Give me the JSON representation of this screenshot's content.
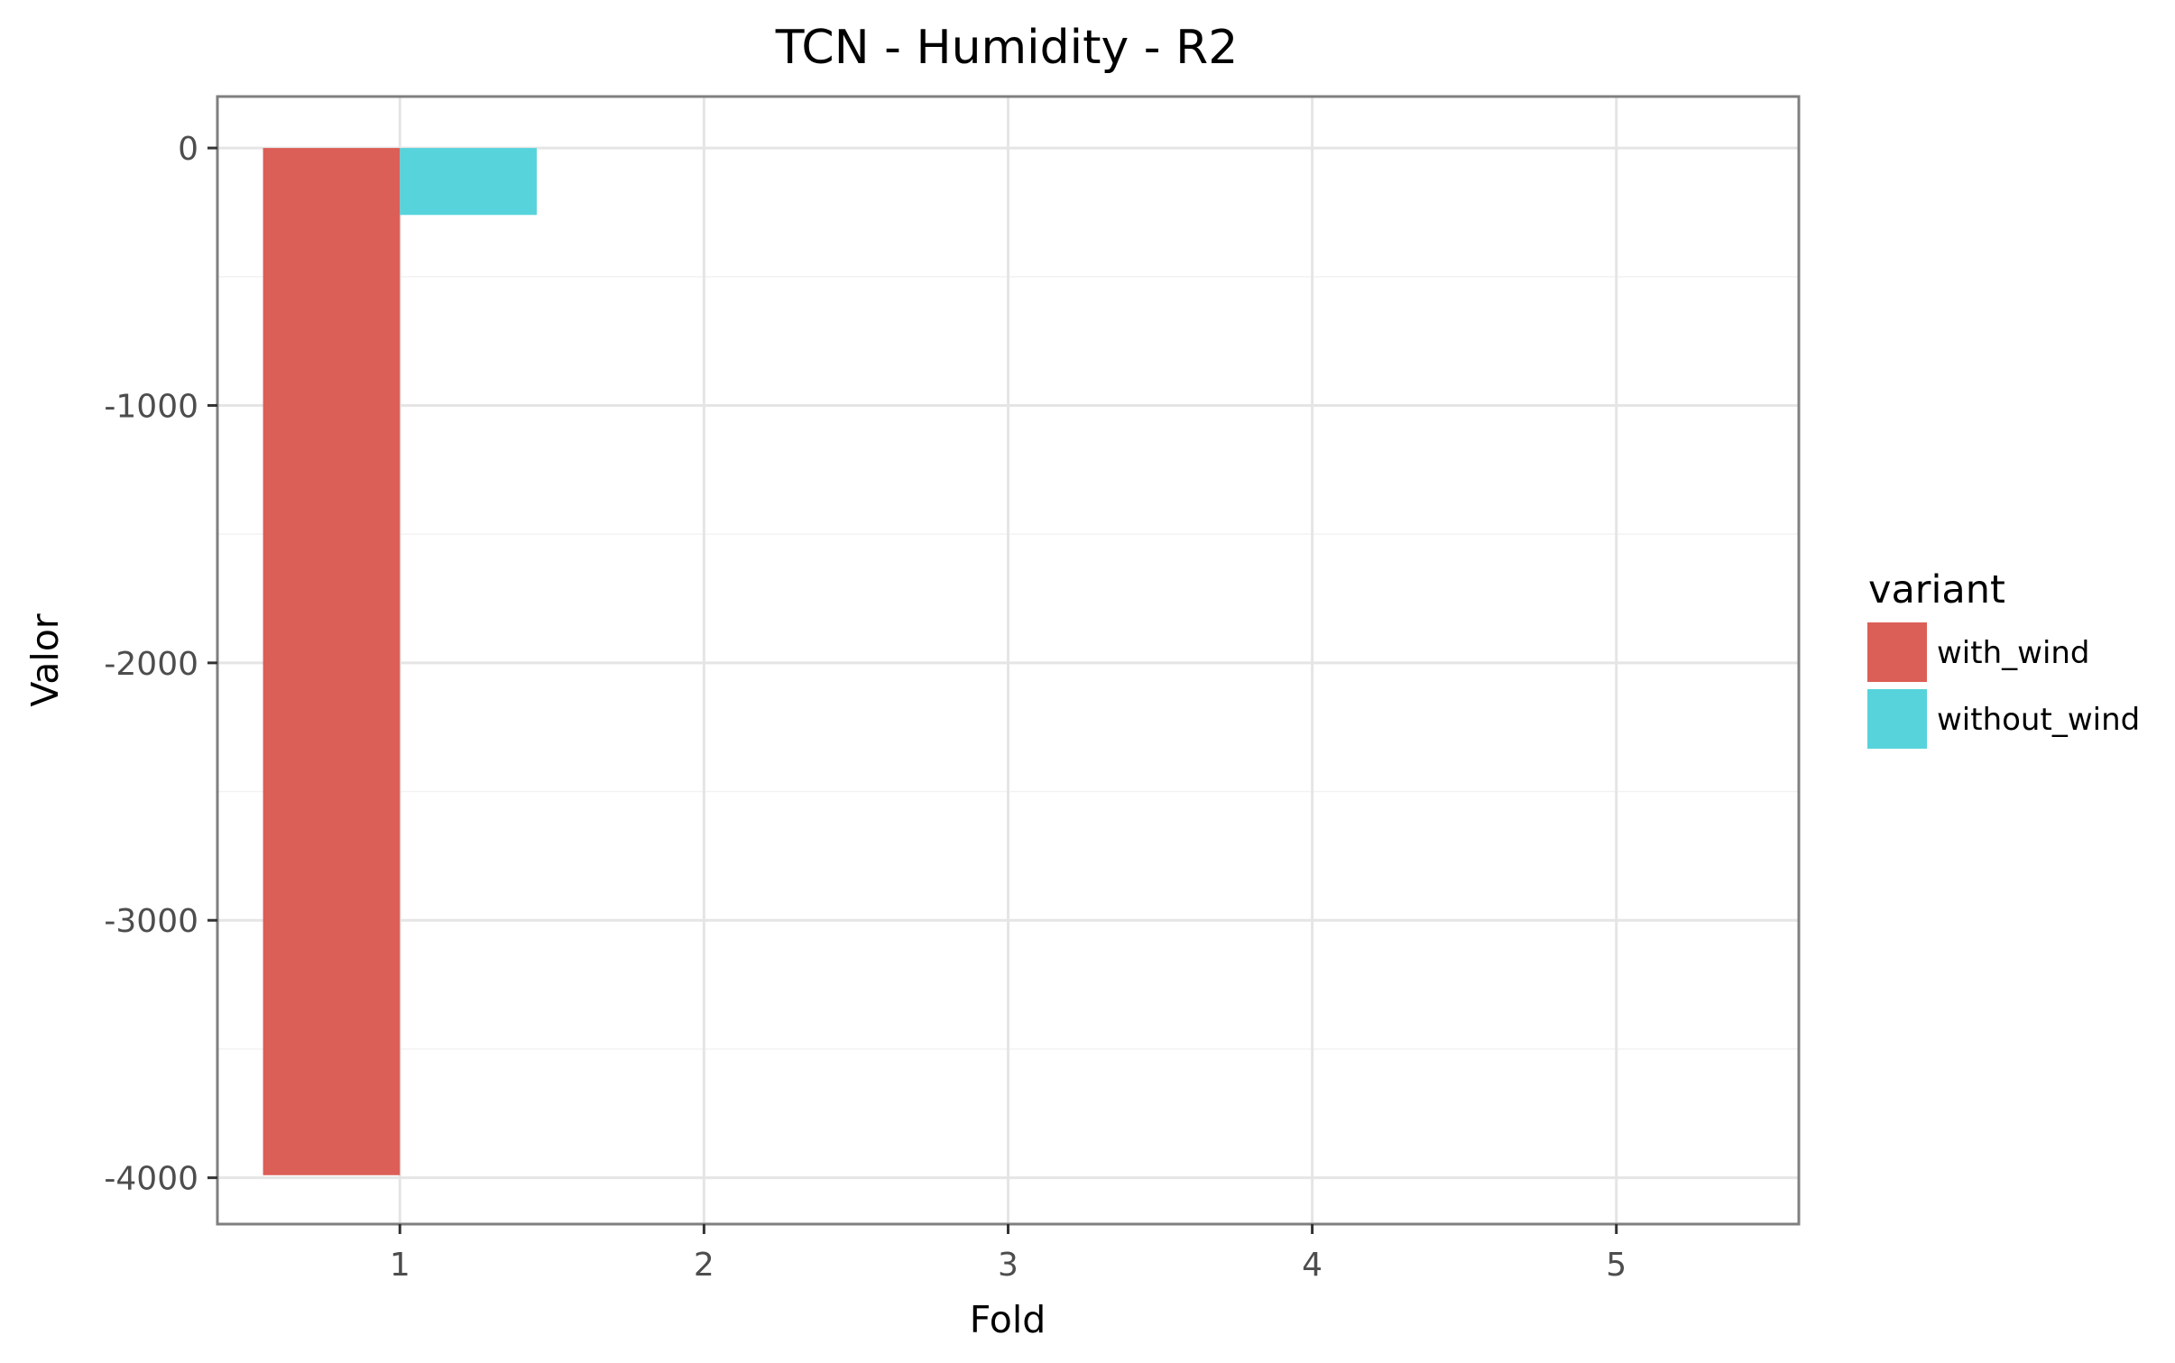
{
  "chart_data": {
    "type": "bar",
    "title": "TCN - Humidity - R2",
    "xlabel": "Fold",
    "ylabel": "Valor",
    "categories": [
      "1",
      "2",
      "3",
      "4",
      "5"
    ],
    "y_ticks": [
      "0",
      "-1000",
      "-2000",
      "-3000",
      "-4000"
    ],
    "y_tick_values": [
      0,
      -1000,
      -2000,
      -3000,
      -4000
    ],
    "ylim": [
      -4180,
      200
    ],
    "grid": true,
    "legend": {
      "title": "variant",
      "position": "right"
    },
    "series": [
      {
        "name": "with_wind",
        "color": "#db5f57",
        "values": [
          -3990,
          null,
          null,
          null,
          null
        ]
      },
      {
        "name": "without_wind",
        "color": "#57d3db",
        "values": [
          -260,
          null,
          null,
          null,
          null
        ]
      }
    ]
  }
}
